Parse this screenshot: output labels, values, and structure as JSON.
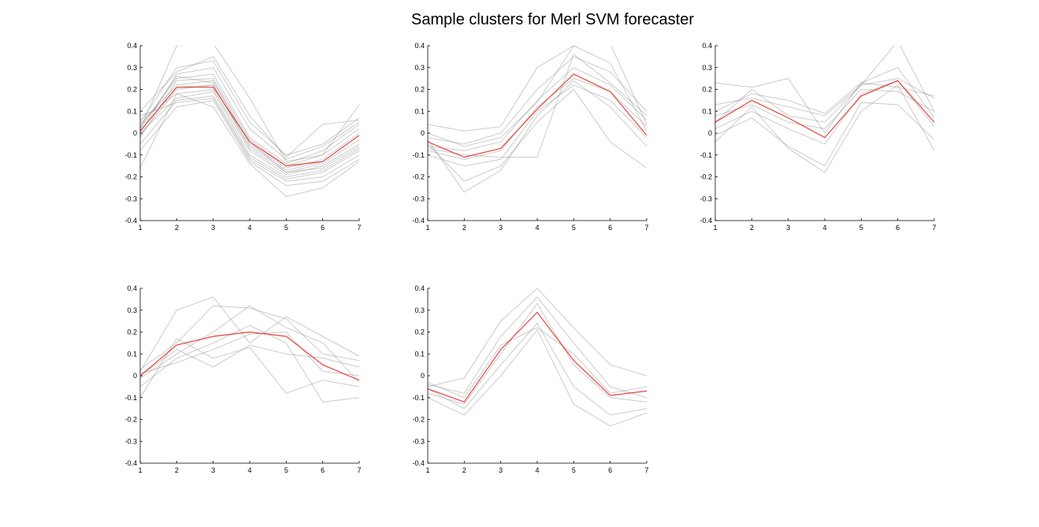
{
  "figure": {
    "title": "Sample clusters for Merl SVM forecaster"
  },
  "chart_data": [
    {
      "type": "line",
      "x": [
        1,
        2,
        3,
        4,
        5,
        6,
        7
      ],
      "xlim": [
        1,
        7
      ],
      "ylim": [
        -0.4,
        0.4
      ],
      "xticks": [
        "1",
        "2",
        "3",
        "4",
        "5",
        "6",
        "7"
      ],
      "yticks": [
        "-0.4",
        "-0.3",
        "-0.2",
        "-0.1",
        "0",
        "0.1",
        "0.2",
        "0.3",
        "0.4"
      ],
      "grid": false,
      "centroid_color": "#e8423c",
      "member_color": "#8c8c8c",
      "centroid": [
        0.01,
        0.21,
        0.21,
        -0.04,
        -0.15,
        -0.13,
        -0.01
      ],
      "members": [
        [
          0.02,
          0.4,
          0.41,
          0.16,
          -0.13,
          -0.1,
          0.13
        ],
        [
          0.05,
          0.3,
          0.33,
          0.05,
          -0.1,
          -0.05,
          0.07
        ],
        [
          0.0,
          0.27,
          0.3,
          0.02,
          -0.12,
          -0.06,
          0.05
        ],
        [
          0.03,
          0.25,
          0.27,
          -0.02,
          -0.14,
          -0.08,
          0.04
        ],
        [
          -0.02,
          0.24,
          0.25,
          -0.03,
          -0.15,
          -0.1,
          0.02
        ],
        [
          0.04,
          0.22,
          0.24,
          -0.05,
          -0.16,
          -0.12,
          0.0
        ],
        [
          0.01,
          0.21,
          0.22,
          -0.06,
          -0.17,
          -0.13,
          -0.01
        ],
        [
          -0.01,
          0.2,
          0.22,
          -0.07,
          -0.18,
          -0.14,
          -0.03
        ],
        [
          0.06,
          0.18,
          0.2,
          -0.08,
          -0.19,
          -0.15,
          -0.05
        ],
        [
          0.0,
          0.16,
          0.19,
          -0.1,
          -0.2,
          -0.17,
          -0.07
        ],
        [
          -0.05,
          0.15,
          0.17,
          -0.11,
          -0.21,
          -0.18,
          -0.08
        ],
        [
          0.08,
          0.14,
          0.16,
          -0.12,
          -0.22,
          -0.2,
          -0.1
        ],
        [
          -0.08,
          0.12,
          0.15,
          -0.13,
          -0.24,
          -0.22,
          -0.12
        ],
        [
          -0.16,
          0.18,
          0.12,
          -0.14,
          -0.29,
          -0.25,
          -0.13
        ],
        [
          0.1,
          0.28,
          0.35,
          0.08,
          -0.11,
          0.04,
          0.06
        ],
        [
          0.02,
          0.26,
          0.23,
          -0.04,
          -0.18,
          -0.16,
          -0.06
        ]
      ]
    },
    {
      "type": "line",
      "x": [
        1,
        2,
        3,
        4,
        5,
        6,
        7
      ],
      "xlim": [
        1,
        7
      ],
      "ylim": [
        -0.4,
        0.4
      ],
      "xticks": [
        "1",
        "2",
        "3",
        "4",
        "5",
        "6",
        "7"
      ],
      "yticks": [
        "-0.4",
        "-0.3",
        "-0.2",
        "-0.1",
        "0",
        "0.1",
        "0.2",
        "0.3",
        "0.4"
      ],
      "grid": false,
      "centroid_color": "#e8423c",
      "member_color": "#8c8c8c",
      "centroid": [
        -0.04,
        -0.11,
        -0.07,
        0.11,
        0.27,
        0.19,
        -0.01
      ],
      "members": [
        [
          0.04,
          0.01,
          0.03,
          0.3,
          0.4,
          0.32,
          0.01
        ],
        [
          -0.02,
          -0.05,
          0.0,
          0.2,
          0.35,
          0.28,
          0.1
        ],
        [
          -0.06,
          -0.08,
          -0.04,
          0.15,
          0.3,
          0.22,
          0.06
        ],
        [
          -0.08,
          -0.12,
          -0.08,
          0.12,
          0.25,
          0.19,
          0.03
        ],
        [
          -0.1,
          -0.15,
          -0.12,
          0.1,
          0.22,
          0.15,
          -0.02
        ],
        [
          -0.05,
          -0.22,
          -0.15,
          0.05,
          0.2,
          -0.04,
          -0.16
        ],
        [
          -0.03,
          -0.27,
          -0.17,
          0.08,
          0.24,
          0.12,
          -0.06
        ],
        [
          -0.07,
          -0.1,
          -0.11,
          -0.11,
          0.36,
          0.23,
          0.08
        ],
        [
          0.0,
          -0.06,
          -0.02,
          0.14,
          0.4,
          0.41,
          0.04
        ]
      ]
    },
    {
      "type": "line",
      "x": [
        1,
        2,
        3,
        4,
        5,
        6,
        7
      ],
      "xlim": [
        1,
        7
      ],
      "ylim": [
        -0.4,
        0.4
      ],
      "xticks": [
        "1",
        "2",
        "3",
        "4",
        "5",
        "6",
        "7"
      ],
      "yticks": [
        "-0.4",
        "-0.3",
        "-0.2",
        "-0.1",
        "0",
        "0.1",
        "0.2",
        "0.3",
        "0.4"
      ],
      "grid": false,
      "centroid_color": "#e8423c",
      "member_color": "#8c8c8c",
      "centroid": [
        0.05,
        0.15,
        0.07,
        -0.02,
        0.17,
        0.24,
        0.05
      ],
      "members": [
        [
          0.23,
          0.21,
          0.25,
          0.0,
          0.23,
          0.21,
          0.17
        ],
        [
          0.13,
          0.16,
          0.12,
          0.08,
          0.22,
          0.25,
          0.16
        ],
        [
          0.08,
          0.13,
          0.05,
          0.02,
          0.2,
          0.19,
          0.1
        ],
        [
          0.02,
          0.1,
          0.02,
          -0.05,
          0.18,
          0.24,
          0.03
        ],
        [
          -0.01,
          0.07,
          -0.06,
          -0.15,
          0.14,
          0.13,
          -0.03
        ],
        [
          -0.04,
          0.12,
          -0.07,
          -0.18,
          0.1,
          0.22,
          -0.08
        ],
        [
          0.05,
          0.2,
          0.08,
          0.05,
          0.22,
          0.42,
          0.1
        ],
        [
          0.1,
          0.18,
          0.15,
          0.09,
          0.23,
          0.3,
          0.07
        ]
      ]
    },
    {
      "type": "line",
      "x": [
        1,
        2,
        3,
        4,
        5,
        6,
        7
      ],
      "xlim": [
        1,
        7
      ],
      "ylim": [
        -0.4,
        0.4
      ],
      "xticks": [
        "1",
        "2",
        "3",
        "4",
        "5",
        "6",
        "7"
      ],
      "yticks": [
        "-0.4",
        "-0.3",
        "-0.2",
        "-0.1",
        "0",
        "0.1",
        "0.2",
        "0.3",
        "0.4"
      ],
      "grid": false,
      "centroid_color": "#e8423c",
      "member_color": "#8c8c8c",
      "centroid": [
        0.0,
        0.14,
        0.18,
        0.2,
        0.18,
        0.05,
        -0.02
      ],
      "members": [
        [
          0.02,
          0.3,
          0.36,
          0.15,
          0.27,
          0.18,
          0.09
        ],
        [
          0.03,
          0.15,
          0.32,
          0.31,
          0.26,
          0.1,
          0.07
        ],
        [
          -0.01,
          0.1,
          0.2,
          0.32,
          0.22,
          0.15,
          -0.03
        ],
        [
          -0.05,
          0.08,
          0.15,
          0.23,
          0.15,
          -0.12,
          -0.1
        ],
        [
          0.0,
          0.12,
          0.04,
          0.14,
          0.1,
          0.08,
          0.04
        ],
        [
          -0.1,
          0.17,
          0.08,
          0.13,
          -0.08,
          -0.02,
          -0.05
        ],
        [
          0.01,
          0.06,
          0.12,
          0.19,
          0.2,
          0.02,
          0.0
        ]
      ]
    },
    {
      "type": "line",
      "x": [
        1,
        2,
        3,
        4,
        5,
        6,
        7
      ],
      "xlim": [
        1,
        7
      ],
      "ylim": [
        -0.4,
        0.4
      ],
      "xticks": [
        "1",
        "2",
        "3",
        "4",
        "5",
        "6",
        "7"
      ],
      "yticks": [
        "-0.4",
        "-0.3",
        "-0.2",
        "-0.1",
        "0",
        "0.1",
        "0.2",
        "0.3",
        "0.4"
      ],
      "grid": false,
      "centroid_color": "#e8423c",
      "member_color": "#8c8c8c",
      "centroid": [
        -0.06,
        -0.12,
        0.12,
        0.29,
        0.07,
        -0.09,
        -0.07
      ],
      "members": [
        [
          -0.05,
          -0.01,
          0.25,
          0.4,
          0.22,
          0.05,
          0.0
        ],
        [
          -0.04,
          -0.08,
          0.18,
          0.36,
          0.15,
          -0.05,
          -0.1
        ],
        [
          -0.08,
          -0.13,
          0.1,
          0.33,
          0.05,
          -0.1,
          -0.12
        ],
        [
          -0.06,
          -0.15,
          0.05,
          0.24,
          -0.05,
          -0.18,
          -0.15
        ],
        [
          -0.1,
          -0.18,
          0.0,
          0.21,
          -0.13,
          -0.23,
          -0.17
        ],
        [
          -0.03,
          -0.1,
          0.14,
          0.22,
          0.1,
          -0.08,
          -0.05
        ]
      ]
    }
  ]
}
